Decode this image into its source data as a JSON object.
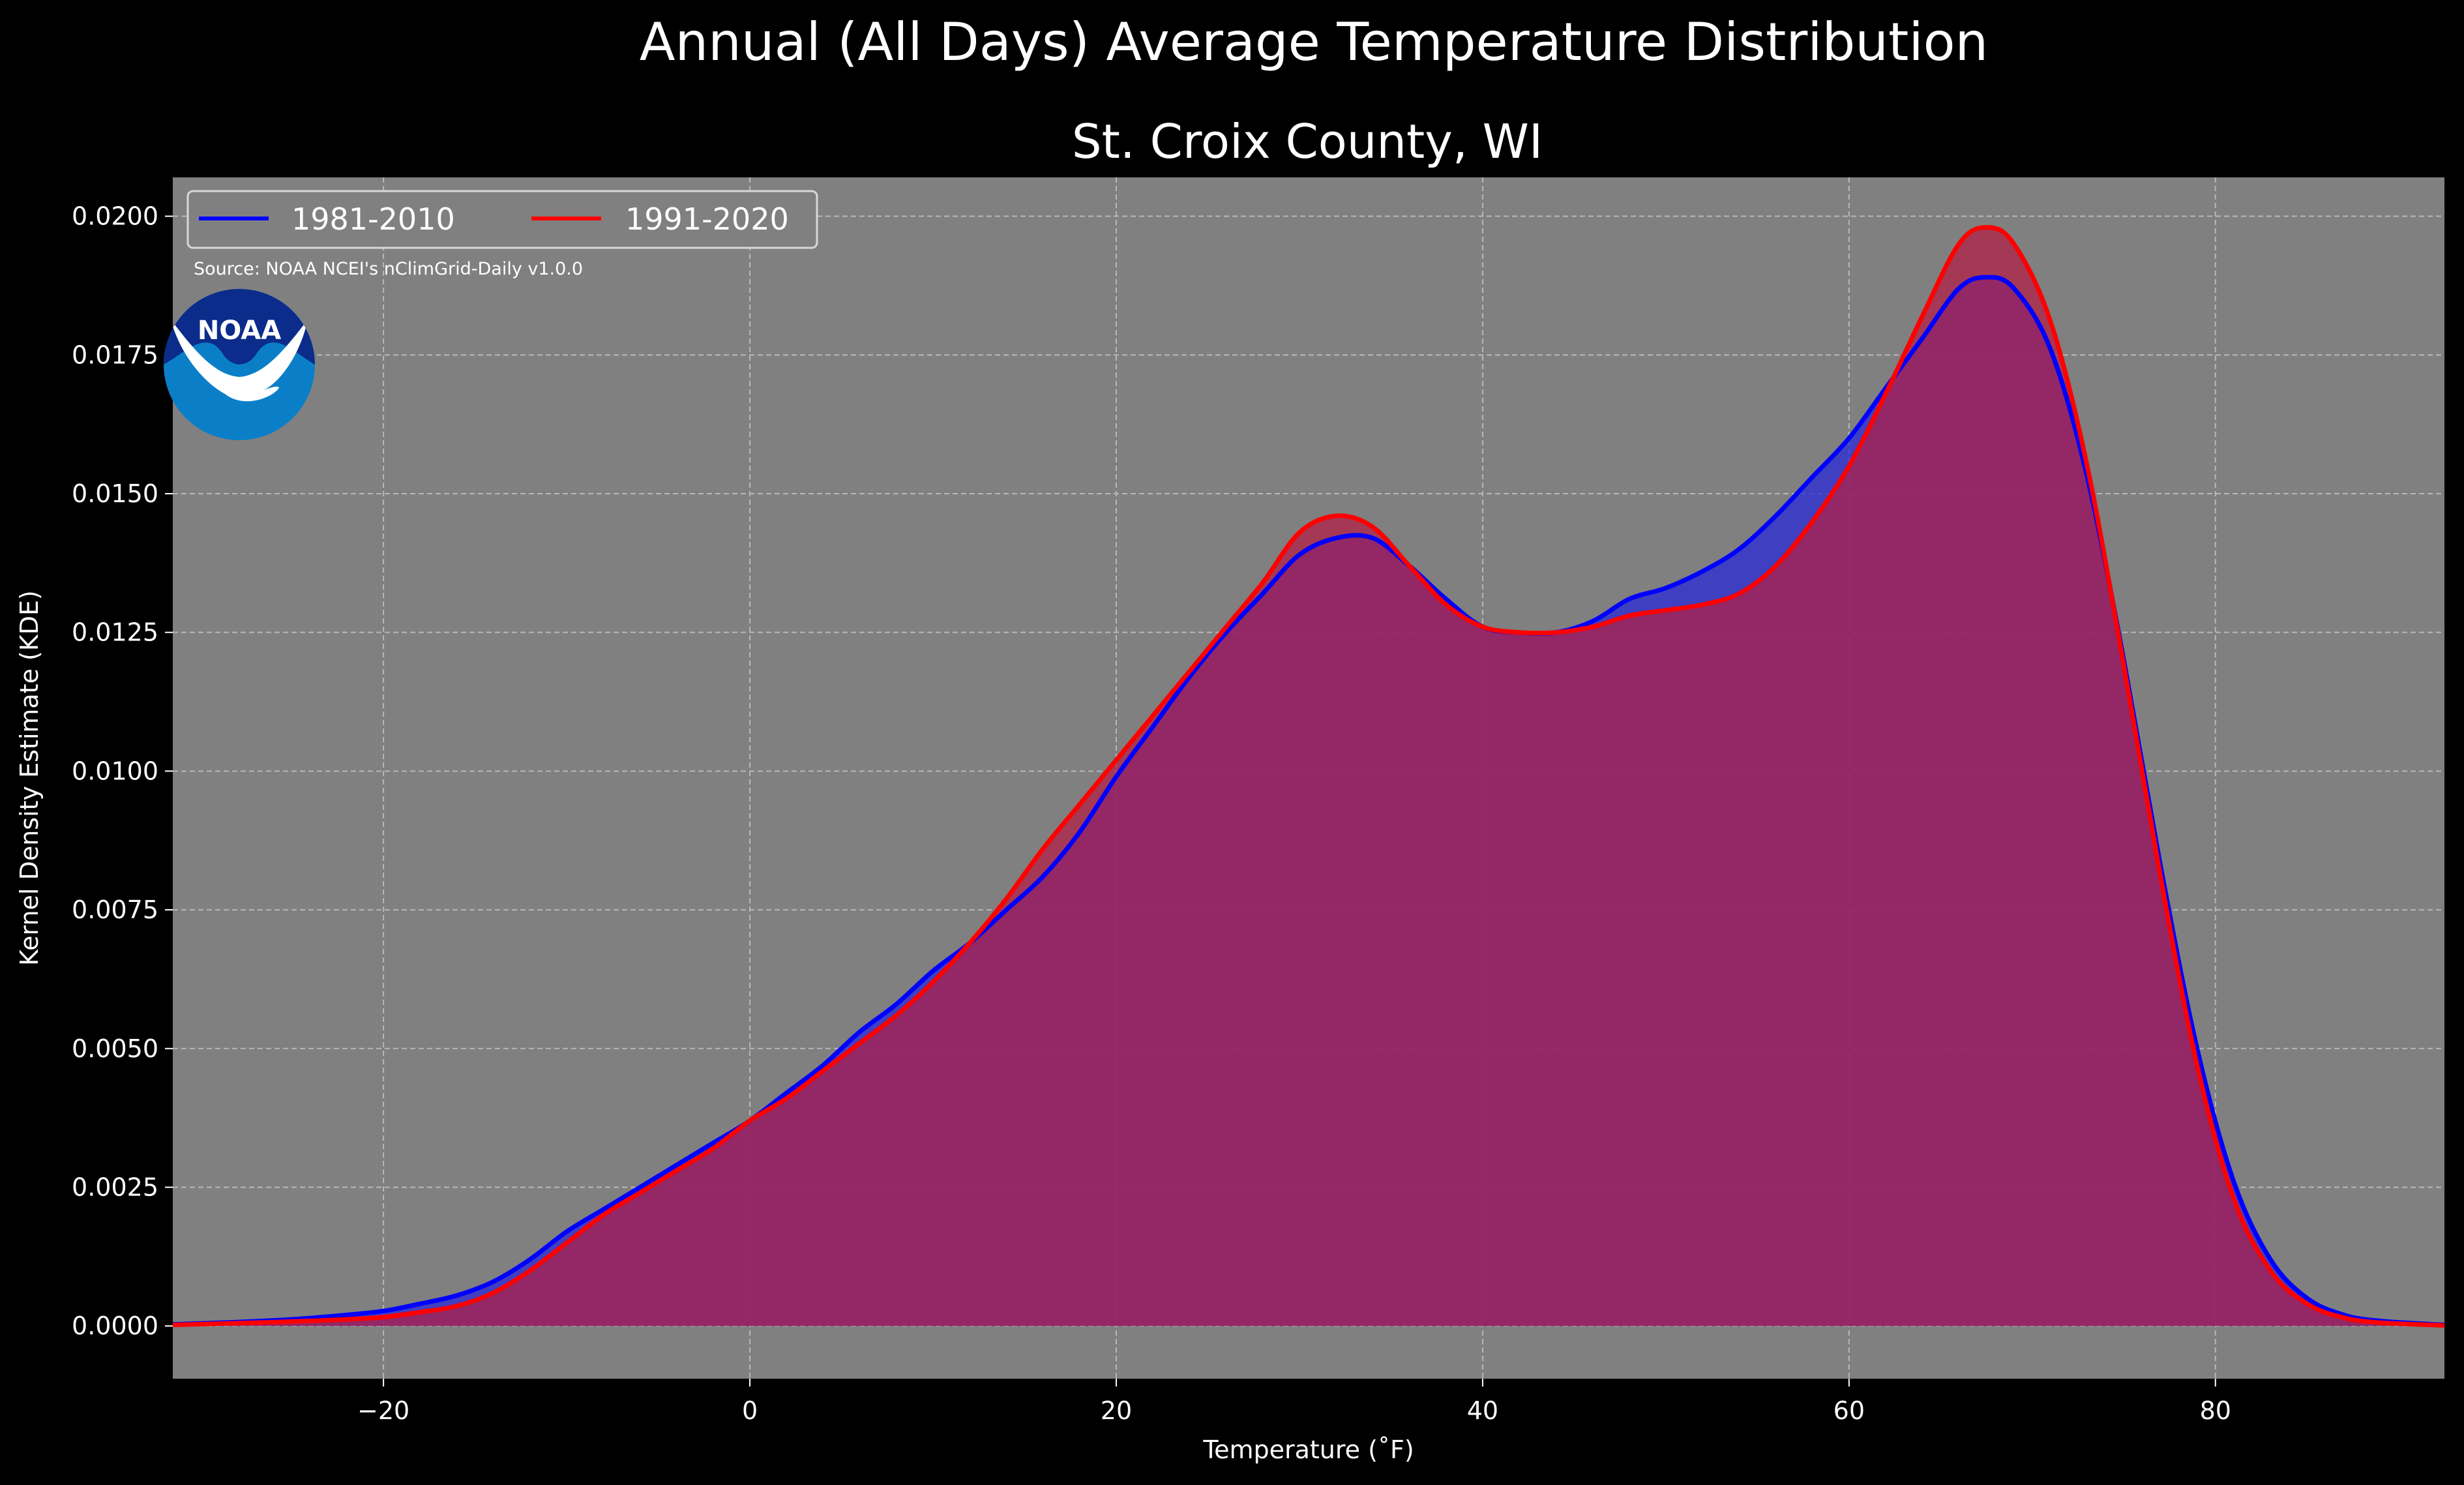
{
  "chart_data": {
    "type": "area",
    "suptitle": "Annual (All Days) Average Temperature Distribution",
    "title": "St. Croix County, WI",
    "xlabel": "Temperature (˚F)",
    "ylabel": "Kernel Density Estimate (KDE)",
    "xlim": [
      -31.5,
      92.5
    ],
    "ylim": [
      -0.00095,
      0.0207
    ],
    "x_ticks": [
      -20,
      0,
      20,
      40,
      60,
      80
    ],
    "x_tick_labels": [
      "−20",
      "0",
      "20",
      "40",
      "60",
      "80"
    ],
    "y_ticks": [
      0.0,
      0.0025,
      0.005,
      0.0075,
      0.01,
      0.0125,
      0.015,
      0.0175,
      0.02
    ],
    "y_tick_labels": [
      "0.0000",
      "0.0025",
      "0.0050",
      "0.0075",
      "0.0100",
      "0.0125",
      "0.0150",
      "0.0175",
      "0.0200"
    ],
    "grid": true,
    "legend_position": "top-left",
    "source_note": "Source: NOAA NCEI's nClimGrid-Daily v1.0.0",
    "logo_text": "NOAA",
    "background_color": "#000000",
    "plot_background_color": "#808080",
    "series": [
      {
        "name": "1981-2010",
        "color": "#0000ff",
        "fill_color": "#2a2ad8",
        "x": [
          -31.5,
          -28,
          -25,
          -22,
          -20,
          -18,
          -16,
          -14,
          -12,
          -10,
          -8,
          -6,
          -4,
          -2,
          0,
          2,
          4,
          6,
          8,
          10,
          12,
          14,
          16,
          18,
          20,
          22,
          24,
          26,
          28,
          30,
          32,
          34,
          36,
          38,
          40,
          42,
          44,
          46,
          48,
          50,
          52,
          54,
          56,
          58,
          60,
          62,
          64,
          66,
          67.5,
          69,
          71,
          73,
          75,
          77,
          79,
          81,
          83,
          85,
          87,
          89,
          92.5
        ],
        "y": [
          3e-05,
          7e-05,
          0.00012,
          0.0002,
          0.00027,
          0.0004,
          0.00055,
          0.0008,
          0.0012,
          0.0017,
          0.0021,
          0.0025,
          0.0029,
          0.0033,
          0.0037,
          0.0042,
          0.0047,
          0.0053,
          0.0058,
          0.0064,
          0.0069,
          0.0075,
          0.0081,
          0.0089,
          0.0099,
          0.0108,
          0.0117,
          0.0125,
          0.0132,
          0.0139,
          0.0142,
          0.0142,
          0.0137,
          0.0131,
          0.0126,
          0.0125,
          0.0125,
          0.0127,
          0.0131,
          0.0133,
          0.0136,
          0.014,
          0.0146,
          0.0153,
          0.016,
          0.0169,
          0.0178,
          0.0187,
          0.0189,
          0.0187,
          0.0176,
          0.0153,
          0.012,
          0.0083,
          0.005,
          0.0026,
          0.0012,
          0.0005,
          0.0002,
          9e-05,
          2e-05
        ]
      },
      {
        "name": "1991-2020",
        "color": "#ff0000",
        "fill_color": "#b22045",
        "x": [
          -31.5,
          -28,
          -25,
          -22,
          -20,
          -18,
          -16,
          -14,
          -12,
          -10,
          -8,
          -6,
          -4,
          -2,
          0,
          2,
          4,
          6,
          8,
          10,
          12,
          14,
          16,
          18,
          20,
          22,
          24,
          26,
          28,
          30,
          32,
          34,
          36,
          38,
          40,
          42,
          44,
          46,
          48,
          50,
          52,
          54,
          56,
          58,
          60,
          62,
          64,
          66,
          67.5,
          69,
          71,
          73,
          75,
          77,
          79,
          81,
          83,
          85,
          87,
          89,
          92.5
        ],
        "y": [
          2e-05,
          5e-05,
          8e-05,
          0.00012,
          0.00016,
          0.00025,
          0.00036,
          0.0006,
          0.001,
          0.0015,
          0.002,
          0.0024,
          0.0028,
          0.0032,
          0.0037,
          0.0041,
          0.0046,
          0.0051,
          0.0056,
          0.0062,
          0.0069,
          0.0077,
          0.0086,
          0.0094,
          0.0102,
          0.011,
          0.0118,
          0.0126,
          0.0134,
          0.0143,
          0.0146,
          0.0144,
          0.0137,
          0.013,
          0.0126,
          0.0125,
          0.0125,
          0.0126,
          0.0128,
          0.0129,
          0.013,
          0.0132,
          0.0137,
          0.0145,
          0.0155,
          0.0168,
          0.0182,
          0.0195,
          0.0198,
          0.0195,
          0.0181,
          0.0155,
          0.0119,
          0.0081,
          0.0047,
          0.0023,
          0.001,
          0.0004,
          0.00015,
          6e-05,
          1e-05
        ]
      }
    ]
  }
}
